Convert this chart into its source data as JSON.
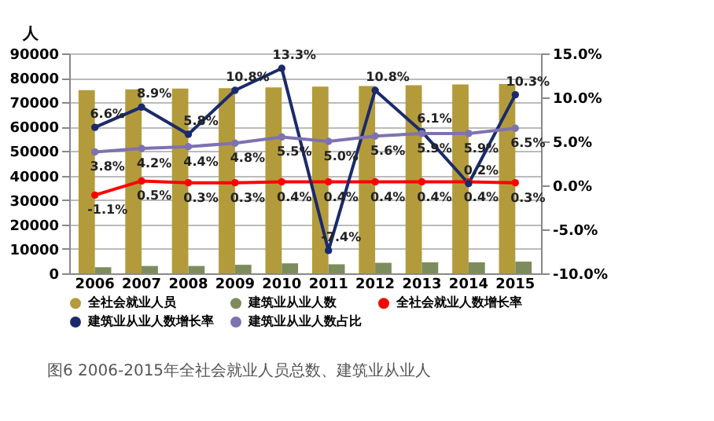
{
  "chart_data": {
    "type": "bar",
    "ylabel": "人",
    "categories": [
      "2006",
      "2007",
      "2008",
      "2009",
      "2010",
      "2011",
      "2012",
      "2013",
      "2014",
      "2015"
    ],
    "series": [
      {
        "name": "全社会就业人员",
        "color": "#b39b3c",
        "values": [
          75000,
          75300,
          75600,
          75800,
          76100,
          76400,
          76700,
          77000,
          77300,
          77500
        ]
      },
      {
        "name": "建筑业从业人数",
        "color": "#7d8c5c",
        "values": [
          2500,
          3000,
          3000,
          3500,
          4100,
          3700,
          4300,
          4500,
          4500,
          4800
        ]
      },
      {
        "name": "全社会就业人数增长率",
        "type": "line",
        "axis": "y2",
        "color": "#ff0000",
        "values": [
          -1.1,
          0.5,
          0.3,
          0.3,
          0.4,
          0.4,
          0.4,
          0.4,
          0.4,
          0.3
        ],
        "value_labels": [
          "-1.1%",
          "0.5%",
          "0.3%",
          "0.3%",
          "0.4%",
          "0.4%",
          "0.4%",
          "0.4%",
          "0.4%",
          "0.3%"
        ]
      },
      {
        "name": "建筑业从业人数增长率",
        "type": "line",
        "axis": "y2",
        "color": "#1a2a6c",
        "values": [
          6.6,
          8.9,
          5.8,
          10.8,
          13.3,
          -7.4,
          10.8,
          6.1,
          0.2,
          10.3
        ],
        "value_labels": [
          "6.6%",
          "8.9%",
          "5.8%",
          "10.8%",
          "13.3%",
          "-7.4%",
          "10.8%",
          "6.1%",
          "0.2%",
          "10.3%"
        ]
      },
      {
        "name": "建筑业从业人数占比",
        "type": "line",
        "axis": "y2",
        "color": "#7f72b0",
        "values": [
          3.8,
          4.2,
          4.4,
          4.8,
          5.5,
          5.0,
          5.6,
          5.9,
          5.9,
          6.5
        ],
        "value_labels": [
          "3.8%",
          "4.2%",
          "4.4%",
          "4.8%",
          "5.5%",
          "5.0%",
          "5.6%",
          "5.9%",
          "5.9%",
          "6.5%"
        ]
      }
    ],
    "ylim": [
      0,
      90000
    ],
    "yticks": [
      0,
      10000,
      20000,
      30000,
      40000,
      50000,
      60000,
      70000,
      80000,
      90000
    ],
    "y2lim": [
      -10,
      15
    ],
    "y2ticks": [
      {
        "value": -10,
        "label": "-10.0%"
      },
      {
        "value": -5,
        "label": "-5.0%"
      },
      {
        "value": 0,
        "label": "0.0%"
      },
      {
        "value": 5,
        "label": "5.0%"
      },
      {
        "value": 10,
        "label": "10.0%"
      },
      {
        "value": 15,
        "label": "15.0%"
      }
    ],
    "grid": "y",
    "legend": "bottom",
    "marker": "circle",
    "annotations": [
      "图6 2006-2015年全社会就业人员总数、建筑业从业人"
    ]
  }
}
